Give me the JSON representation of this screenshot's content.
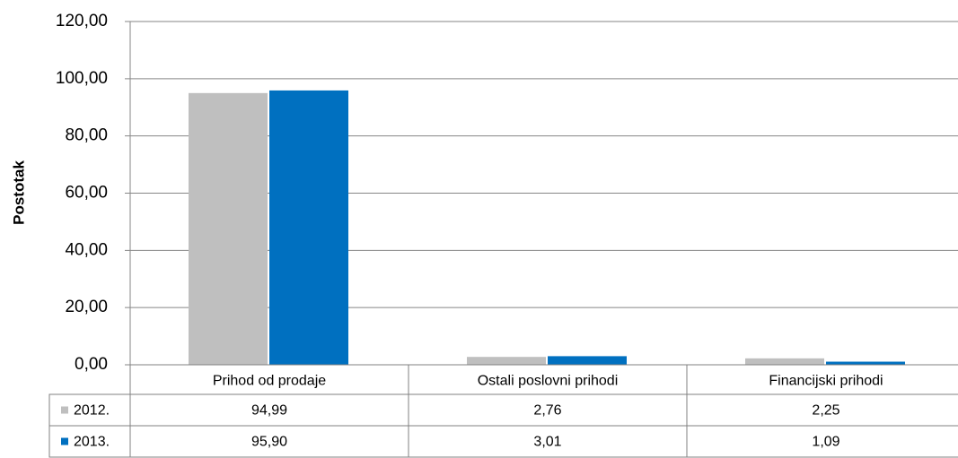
{
  "chart_data": {
    "type": "bar",
    "y_label": "Postotak",
    "categories": [
      "Prihod od prodaje",
      "Ostali poslovni prihodi",
      "Financijski prihodi"
    ],
    "series": [
      {
        "name": "2012.",
        "color": "#bfbfbf",
        "values": [
          94.99,
          2.76,
          2.25
        ],
        "value_labels": [
          "94,99",
          "2,76",
          "2,25"
        ]
      },
      {
        "name": "2013.",
        "color": "#0070c0",
        "values": [
          95.9,
          3.01,
          1.09
        ],
        "value_labels": [
          "95,90",
          "3,01",
          "1,09"
        ]
      }
    ],
    "ylim": [
      0,
      120
    ],
    "yticks": [
      {
        "value": 0,
        "label": "0,00"
      },
      {
        "value": 20,
        "label": "20,00"
      },
      {
        "value": 40,
        "label": "40,00"
      },
      {
        "value": 60,
        "label": "60,00"
      },
      {
        "value": 80,
        "label": "80,00"
      },
      {
        "value": 100,
        "label": "100,00"
      },
      {
        "value": 120,
        "label": "120,00"
      }
    ],
    "grid": true
  }
}
